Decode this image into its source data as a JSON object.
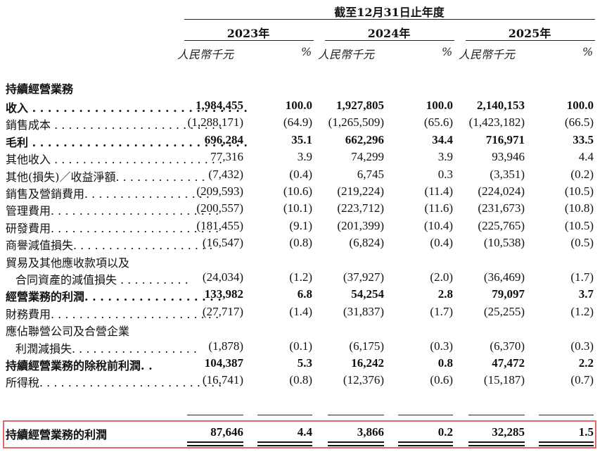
{
  "header": {
    "period_title": "截至12月31日止年度",
    "years": [
      "2023年",
      "2024年",
      "2025年"
    ],
    "unit_label": "人民幣千元",
    "pct_label": "%"
  },
  "section_title": "持續經營業務",
  "rows": [
    {
      "label": "收入 . . . . . . . . . . . . . . . . . . . . . . . . . . . .",
      "bold": true,
      "v": [
        "1,984,455",
        "100.0",
        "1,927,805",
        "100.0",
        "2,140,153",
        "100.0"
      ]
    },
    {
      "label": "銷售成本 . . . . . . . . . . . . . . . . . . . . . . . .",
      "bold": false,
      "v": [
        "(1,288,171)",
        "(64.9)",
        "(1,265,509)",
        "(65.6)",
        "(1,423,182)",
        "(66.5)"
      ]
    },
    {
      "label": "毛利 . . . . . . . . . . . . . . . . . . . . . . . . . . . .",
      "bold": true,
      "v": [
        "696,284",
        "35.1",
        "662,296",
        "34.4",
        "716,971",
        "33.5"
      ]
    },
    {
      "label": "其他收入 . . . . . . . . . . . . . . . . . . . . . . . .",
      "bold": false,
      "v": [
        "77,316",
        "3.9",
        "74,299",
        "3.9",
        "93,946",
        "4.4"
      ]
    },
    {
      "label": "其他(損失)／收益淨額. . . . . . . . . . . . .",
      "bold": false,
      "v": [
        "(7,432)",
        "(0.4)",
        "6,745",
        "0.3",
        "(3,351)",
        "(0.2)"
      ]
    },
    {
      "label": "銷售及營銷費用. . . . . . . . . . . . . . . . . .",
      "bold": false,
      "v": [
        "(209,593)",
        "(10.6)",
        "(219,224)",
        "(11.4)",
        "(224,024)",
        "(10.5)"
      ]
    },
    {
      "label": "管理費用. . . . . . . . . . . . . . . . . . . . . . . .",
      "bold": false,
      "v": [
        "(200,557)",
        "(10.1)",
        "(223,712)",
        "(11.6)",
        "(231,673)",
        "(10.8)"
      ]
    },
    {
      "label": "研發費用. . . . . . . . . . . . . . . . . . . . . . . .",
      "bold": false,
      "v": [
        "(181,455)",
        "(9.1)",
        "(201,399)",
        "(10.4)",
        "(225,765)",
        "(10.5)"
      ]
    },
    {
      "label": "商譽減值損失. . . . . . . . . . . . . . . . . . . .",
      "bold": false,
      "v": [
        "(16,547)",
        "(0.8)",
        "(6,824)",
        "(0.4)",
        "(10,538)",
        "(0.5)"
      ]
    },
    {
      "label": "貿易及其他應收款項以及",
      "bold": false,
      "v": [
        "",
        "",
        "",
        "",
        "",
        ""
      ]
    },
    {
      "label": "合同資產的減值損失 . . . . . . . . . .",
      "bold": false,
      "indent": true,
      "v": [
        "(24,034)",
        "(1.2)",
        "(37,927)",
        "(2.0)",
        "(36,469)",
        "(1.7)"
      ]
    },
    {
      "label": "經營業務的利潤. . . . . . . . . . . . . . . . . .",
      "bold": true,
      "v": [
        "133,982",
        "6.8",
        "54,254",
        "2.8",
        "79,097",
        "3.7"
      ]
    },
    {
      "label": "財務費用. . . . . . . . . . . . . . . . . . . . . . . .",
      "bold": false,
      "v": [
        "(27,717)",
        "(1.4)",
        "(31,837)",
        "(1.7)",
        "(25,255)",
        "(1.2)"
      ]
    },
    {
      "label": "應佔聯營公司及合營企業",
      "bold": false,
      "v": [
        "",
        "",
        "",
        "",
        "",
        ""
      ]
    },
    {
      "label": "利潤減損失. . . . . . . . . . . . . . . . . .",
      "bold": false,
      "indent": true,
      "v": [
        "(1,878)",
        "(0.1)",
        "(6,175)",
        "(0.3)",
        "(6,370)",
        "(0.3)"
      ]
    },
    {
      "label": "持續經營業務的除稅前利潤. .",
      "bold": true,
      "v": [
        "104,387",
        "5.3",
        "16,242",
        "0.8",
        "47,472",
        "2.2"
      ]
    },
    {
      "label": "所得稅. . . . . . . . . . . . . . . . . . . . . . . . . .",
      "bold": false,
      "v": [
        "(16,741)",
        "(0.8)",
        "(12,376)",
        "(0.6)",
        "(15,187)",
        "(0.7)"
      ]
    }
  ],
  "total_row": {
    "label": "持續經營業務的利潤",
    "bold": true,
    "v": [
      "87,646",
      "4.4",
      "3,866",
      "0.2",
      "32,285",
      "1.5"
    ]
  },
  "colors": {
    "highlight_border": "#e06a6a",
    "text": "#111111"
  }
}
